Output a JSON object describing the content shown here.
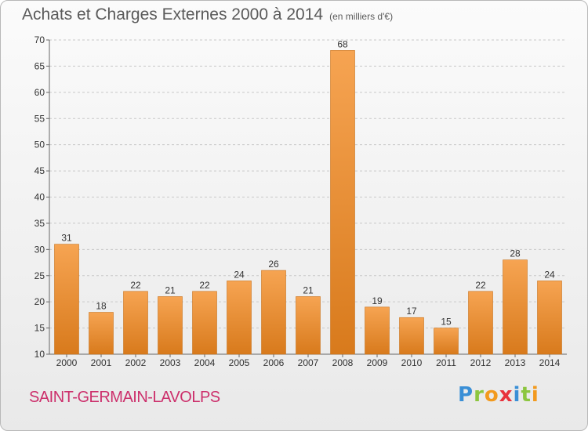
{
  "header": {
    "title": "Achats et Charges Externes 2000 à 2014",
    "subtitle": "(en milliers d'€)"
  },
  "footer": {
    "commune": "SAINT-GERMAIN-LAVOLPS",
    "logo": [
      "P",
      "r",
      "o",
      "x",
      "i",
      "t",
      "i"
    ],
    "logo_colors": [
      "#3a8fd6",
      "#8cc63f",
      "#f29a1e",
      "#e8323c",
      "#3a8fd6",
      "#8cc63f",
      "#f29a1e"
    ]
  },
  "colors": {
    "bar_light": "#f6a452",
    "bar_dark": "#d87a1c",
    "grid": "#c8c8c8",
    "axis_text": "#333333",
    "title_text": "#5a5a5a",
    "commune_text": "#cc2f6b"
  },
  "chart_data": {
    "type": "bar",
    "title": "Achats et Charges Externes 2000 à 2014",
    "subtitle": "(en milliers d'€)",
    "categories": [
      "2000",
      "2001",
      "2002",
      "2003",
      "2004",
      "2005",
      "2006",
      "2007",
      "2008",
      "2009",
      "2010",
      "2011",
      "2012",
      "2013",
      "2014"
    ],
    "values": [
      31,
      18,
      22,
      21,
      22,
      24,
      26,
      21,
      68,
      19,
      17,
      15,
      22,
      28,
      24
    ],
    "ylim": [
      10,
      70
    ],
    "yticks": [
      10,
      15,
      20,
      25,
      30,
      35,
      40,
      45,
      50,
      55,
      60,
      65,
      70
    ],
    "grid": "horizontal dashed",
    "data_labels": true
  }
}
